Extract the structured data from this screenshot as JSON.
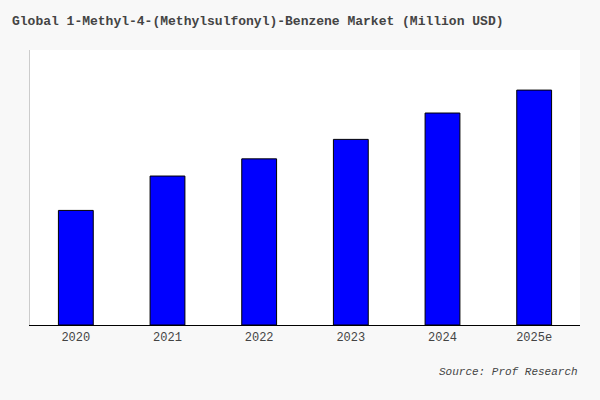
{
  "chart_data": {
    "type": "bar",
    "title": "Global 1-Methyl-4-(Methylsulfonyl)-Benzene Market (Million USD)",
    "categories": [
      "2020",
      "2021",
      "2022",
      "2023",
      "2024",
      "2025e"
    ],
    "values": [
      100,
      130,
      145,
      162,
      185,
      205
    ],
    "color": "#0000ff",
    "ylim": [
      0,
      240
    ],
    "grid": false,
    "tick_labels": "x",
    "annotations": [
      "Source: Prof Research"
    ]
  }
}
